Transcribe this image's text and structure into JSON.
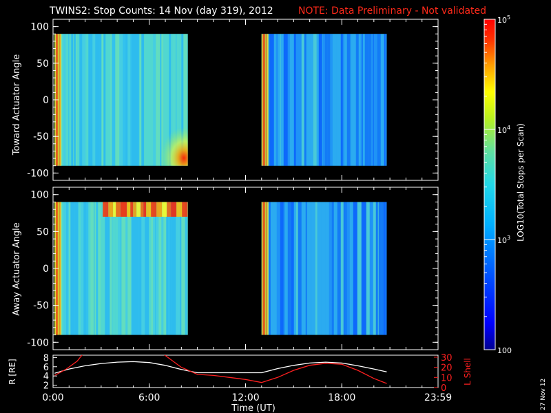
{
  "header": {
    "title": "TWINS2: Stop Counts: 14 Nov (day 319), 2012",
    "note": "NOTE: Data Preliminary - Not validated",
    "title_color": "#ffffff",
    "note_color": "#ff2a1a"
  },
  "footer": {
    "datestamp": "27 Nov 12"
  },
  "chart_data": [
    {
      "type": "heatmap",
      "panel": "toward",
      "ylabel": "Toward Actuator Angle",
      "ylim": [
        -110,
        110
      ],
      "yticks": [
        100,
        50,
        0,
        -50,
        -100
      ],
      "y_extent": [
        -90,
        90
      ],
      "data_segments_hours": [
        [
          0.1,
          8.4
        ],
        [
          13.0,
          20.8
        ]
      ],
      "grid": false
    },
    {
      "type": "heatmap",
      "panel": "away",
      "ylabel": "Away Actuator Angle",
      "ylim": [
        -110,
        110
      ],
      "yticks": [
        100,
        50,
        0,
        -50,
        -100
      ],
      "y_extent": [
        -90,
        90
      ],
      "data_segments_hours": [
        [
          0.1,
          8.4
        ],
        [
          13.0,
          20.8
        ]
      ],
      "grid": false
    },
    {
      "type": "line",
      "panel": "ephemeris",
      "xlabel": "Time (UT)",
      "xlim": [
        0,
        24
      ],
      "xticks": [
        "0:00",
        "6:00",
        "12:00",
        "18:00",
        "23:59"
      ],
      "ylabel_left": "R [RE]",
      "ylabel_right": "L Shell",
      "ylim_left": [
        1.5,
        8.5
      ],
      "yticks_left": [
        "2",
        "4",
        "6",
        "8"
      ],
      "ylim_right": [
        0,
        32
      ],
      "yticks_right": [
        "0",
        "10",
        "20",
        "30"
      ],
      "series": [
        {
          "color": "#ffffff",
          "axis": "left",
          "x": [
            0.1,
            1.0,
            2.0,
            3.0,
            4.0,
            5.0,
            6.0,
            7.0,
            8.0,
            9.0,
            10.0,
            11.0,
            12.0,
            13.0,
            14.0,
            15.0,
            16.0,
            17.0,
            18.0,
            19.0,
            20.0,
            20.8
          ],
          "y": [
            4.6,
            5.5,
            6.2,
            6.7,
            7.0,
            7.1,
            6.9,
            6.3,
            5.4,
            4.7,
            4.7,
            4.7,
            4.7,
            4.7,
            5.6,
            6.3,
            6.8,
            7.0,
            6.8,
            6.2,
            5.5,
            4.9
          ]
        },
        {
          "color": "#ff2020",
          "axis": "right",
          "x": [
            0.1,
            0.8,
            1.5,
            1.9,
            6.8,
            8.0,
            9.0,
            10.0,
            11.0,
            12.0,
            13.0,
            14.0,
            15.0,
            16.0,
            17.0,
            18.0,
            19.0,
            20.0,
            20.8
          ],
          "y": [
            12,
            18,
            26,
            34,
            34,
            20,
            13,
            12,
            10,
            8,
            5,
            10,
            17,
            22,
            24,
            23,
            17,
            9,
            4
          ]
        }
      ]
    },
    {
      "type": "colorbar",
      "label": "LOG10(Total Stops per Scan)",
      "scale": "log",
      "range": [
        100,
        100000
      ],
      "tick_labels": [
        "10^5",
        "10^4",
        "10^3",
        "100"
      ],
      "colormap": [
        "#000090",
        "#0000ff",
        "#0050ff",
        "#00b0ff",
        "#22d8e8",
        "#60e0a0",
        "#b8f020",
        "#ffff00",
        "#ffa000",
        "#ff3000",
        "#ff0000"
      ]
    }
  ]
}
